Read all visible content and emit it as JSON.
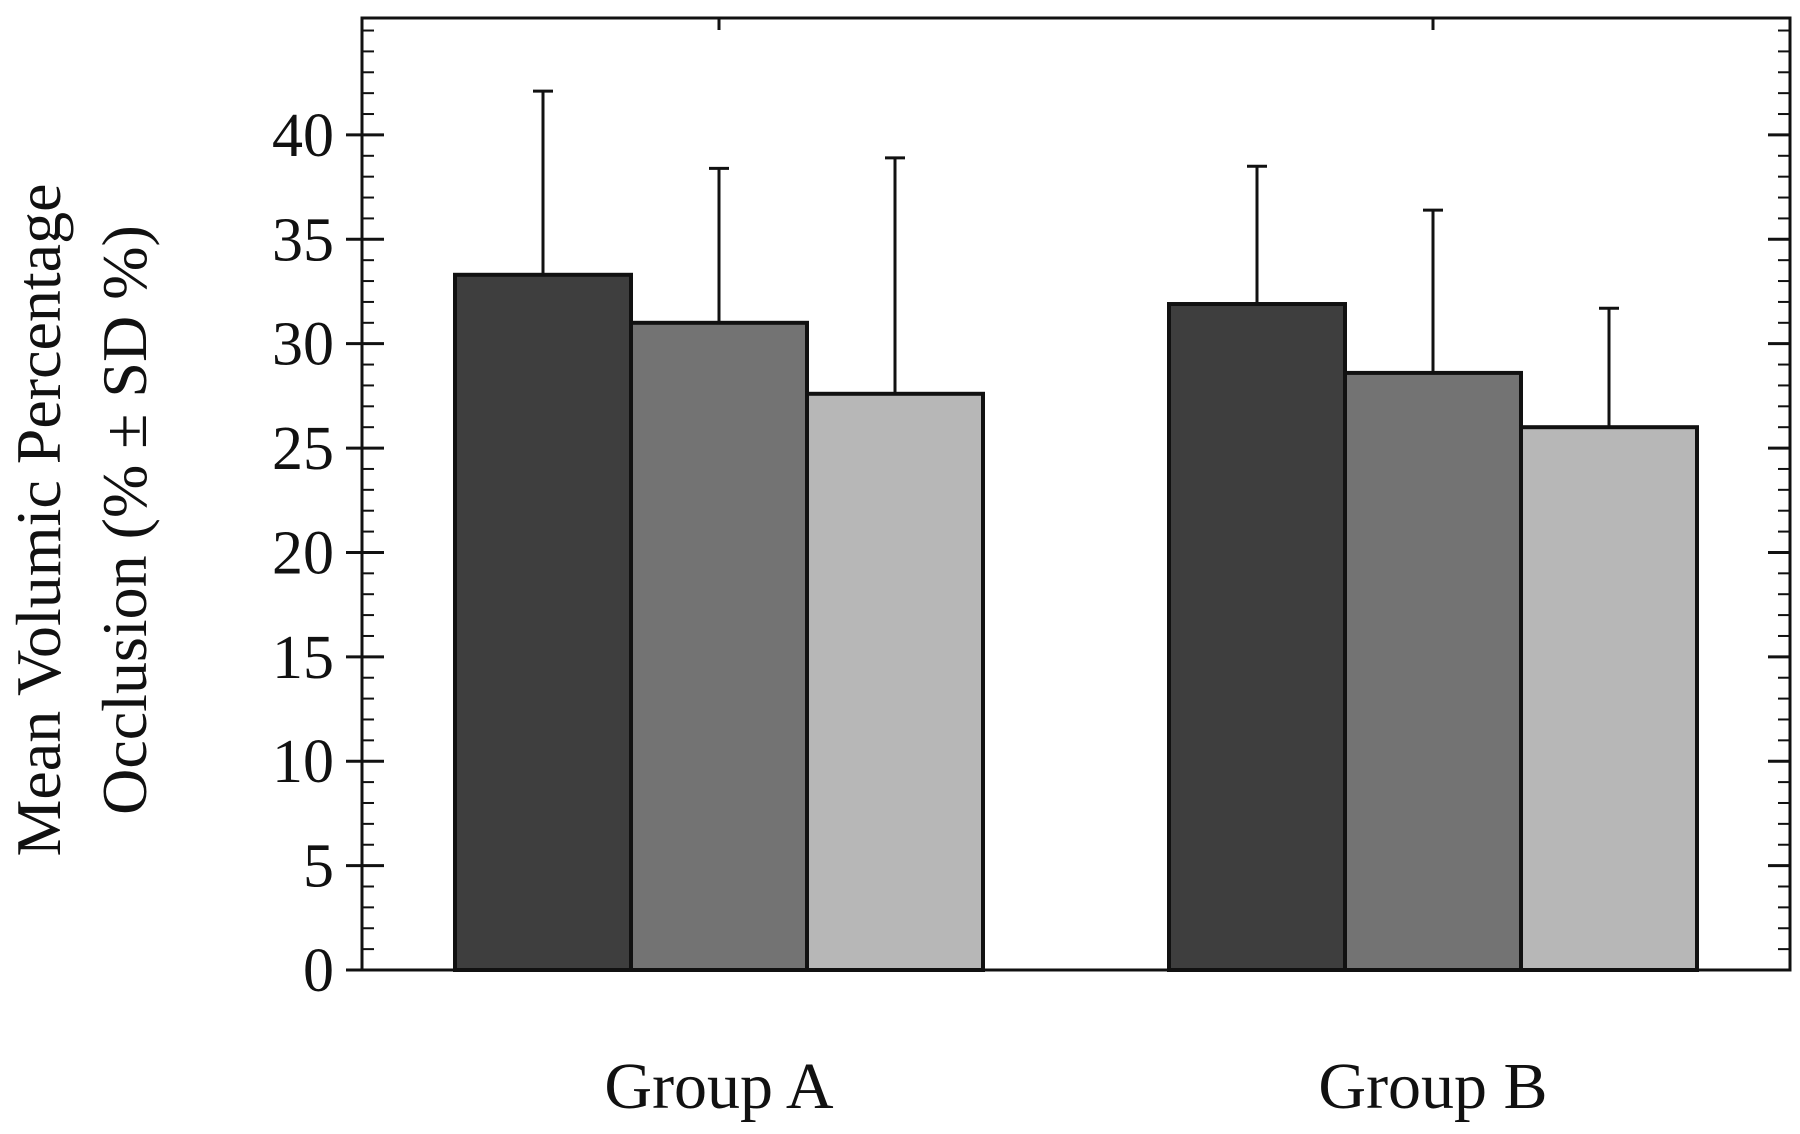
{
  "chart_data": {
    "type": "bar",
    "title": "",
    "xlabel": "",
    "ylabel_lines": [
      "Mean Volumic Percentage",
      "Occlusion (% ± SD %)"
    ],
    "categories": [
      "Group A",
      "Group B"
    ],
    "series": [
      {
        "values": [
          33.3,
          31.9
        ],
        "errors": [
          8.8,
          6.6
        ],
        "color": "#3e3e3e"
      },
      {
        "values": [
          31.0,
          28.6
        ],
        "errors": [
          7.4,
          7.8
        ],
        "color": "#737373"
      },
      {
        "values": [
          27.6,
          26.0
        ],
        "errors": [
          11.3,
          5.7
        ],
        "color": "#b7b7b7"
      }
    ],
    "ylim": [
      0,
      45.6
    ],
    "yticks": [
      0,
      5,
      10,
      15,
      20,
      25,
      30,
      35,
      40
    ],
    "ytick_labels": [
      "0",
      "5",
      "10",
      "15",
      "20",
      "25",
      "30",
      "35",
      "40"
    ],
    "minor_tick_step": 1,
    "grid": false,
    "legend": "none"
  }
}
